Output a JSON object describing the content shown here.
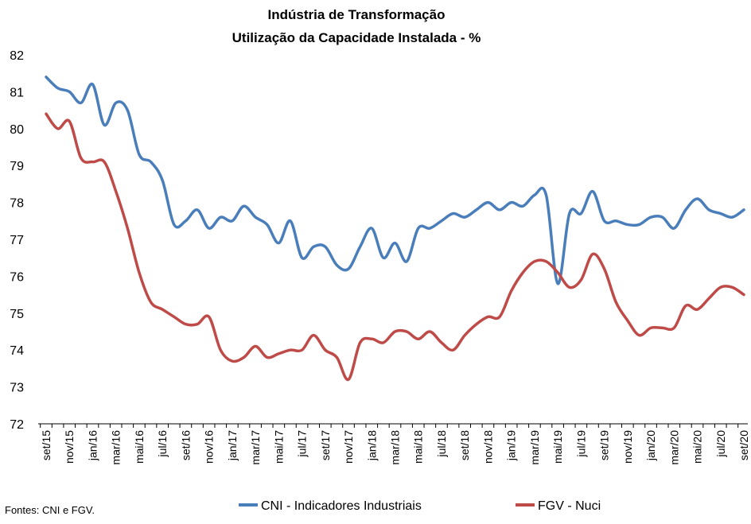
{
  "chart_data": {
    "type": "line",
    "title": "Indústria de Transformação",
    "subtitle": "Utilização da Capacidade Instalada - %",
    "xlabel": "",
    "ylabel": "",
    "ylim": [
      72,
      82
    ],
    "yticks": [
      "72",
      "73",
      "74",
      "75",
      "76",
      "77",
      "78",
      "79",
      "80",
      "81",
      "82"
    ],
    "grid": false,
    "legend_position": "bottom",
    "x_tick_labels": [
      "set/15",
      "nov/15",
      "jan/16",
      "mar/16",
      "mai/16",
      "jul/16",
      "set/16",
      "nov/16",
      "jan/17",
      "mar/17",
      "mai/17",
      "jul/17",
      "set/17",
      "nov/17",
      "jan/18",
      "mar/18",
      "mai/18",
      "jul/18",
      "set/18",
      "nov/18",
      "jan/19",
      "mar/19",
      "mai/19",
      "jul/19",
      "set/19",
      "nov/19",
      "jan/20",
      "mar/20",
      "mai/20",
      "jul/20",
      "set/20"
    ],
    "categories": [
      "set/15",
      "out/15",
      "nov/15",
      "dez/15",
      "jan/16",
      "fev/16",
      "mar/16",
      "abr/16",
      "mai/16",
      "jun/16",
      "jul/16",
      "ago/16",
      "set/16",
      "out/16",
      "nov/16",
      "dez/16",
      "jan/17",
      "fev/17",
      "mar/17",
      "abr/17",
      "mai/17",
      "jun/17",
      "jul/17",
      "ago/17",
      "set/17",
      "out/17",
      "nov/17",
      "dez/17",
      "jan/18",
      "fev/18",
      "mar/18",
      "abr/18",
      "mai/18",
      "jun/18",
      "jul/18",
      "ago/18",
      "set/18",
      "out/18",
      "nov/18",
      "dez/18",
      "jan/19",
      "fev/19",
      "mar/19",
      "abr/19",
      "mai/19",
      "jun/19",
      "jul/19",
      "ago/19",
      "set/19",
      "out/19",
      "nov/19",
      "dez/19",
      "jan/20",
      "fev/20",
      "mar/20",
      "abr/20",
      "mai/20",
      "jun/20",
      "jul/20",
      "ago/20",
      "set/20"
    ],
    "series": [
      {
        "name": "CNI - Indicadores Industriais",
        "color": "#4a7ebb",
        "values": [
          81.4,
          81.1,
          81.0,
          80.7,
          81.2,
          80.1,
          80.7,
          80.5,
          79.3,
          79.1,
          78.6,
          77.4,
          77.5,
          77.8,
          77.3,
          77.6,
          77.5,
          77.9,
          77.6,
          77.4,
          76.9,
          77.5,
          76.5,
          76.8,
          76.8,
          76.3,
          76.2,
          76.8,
          77.3,
          76.5,
          76.9,
          76.4,
          77.3,
          77.3,
          77.5,
          77.7,
          77.6,
          77.8,
          78.0,
          77.8,
          78.0,
          77.9,
          78.2,
          78.2,
          75.8,
          77.7,
          77.7,
          78.3,
          77.5,
          77.5,
          77.4,
          77.4,
          77.6,
          77.6,
          77.3,
          77.8,
          78.1,
          77.8,
          77.7,
          77.6,
          77.8
        ]
      },
      {
        "name": "FGV - Nuci",
        "color": "#be4b48",
        "values": [
          80.4,
          80.0,
          80.2,
          79.2,
          79.1,
          79.1,
          78.3,
          77.3,
          76.1,
          75.3,
          75.1,
          74.9,
          74.7,
          74.7,
          74.9,
          74.0,
          73.7,
          73.8,
          74.1,
          73.8,
          73.9,
          74.0,
          74.0,
          74.4,
          74.0,
          73.8,
          73.2,
          74.2,
          74.3,
          74.2,
          74.5,
          74.5,
          74.3,
          74.5,
          74.2,
          74.0,
          74.4,
          74.7,
          74.9,
          74.9,
          75.6,
          76.1,
          76.4,
          76.4,
          76.1,
          75.7,
          75.9,
          76.6,
          76.2,
          75.3,
          74.8,
          74.4,
          74.6,
          74.6,
          74.6,
          75.2,
          75.1,
          75.4,
          75.7,
          75.7,
          75.5
        ]
      }
    ],
    "source_text": "Fontes: CNI e FGV."
  }
}
